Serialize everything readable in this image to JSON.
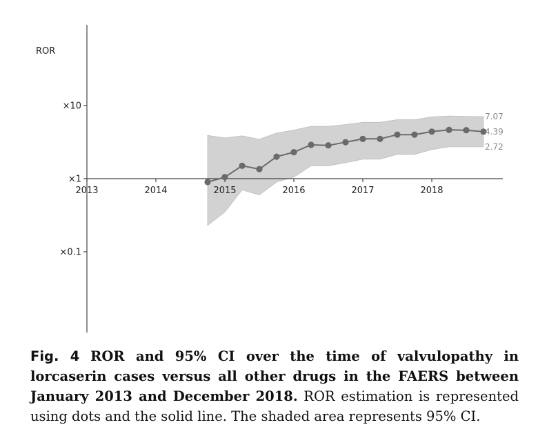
{
  "chart_data": {
    "type": "line",
    "title": "",
    "xlabel": "",
    "ylabel": "ROR",
    "yscale": "log",
    "ylim": [
      0.01,
      100
    ],
    "xlim": [
      2013,
      2019.05
    ],
    "x_ticks": [
      {
        "value": 2013,
        "label": "2013"
      },
      {
        "value": 2014,
        "label": "2014"
      },
      {
        "value": 2015,
        "label": "2015"
      },
      {
        "value": 2016,
        "label": "2016"
      },
      {
        "value": 2017,
        "label": "2017"
      },
      {
        "value": 2018,
        "label": "2018"
      }
    ],
    "y_ticks": [
      {
        "value": 10,
        "label": "×10"
      },
      {
        "value": 1,
        "label": "×1"
      },
      {
        "value": 0.1,
        "label": "×0.1"
      }
    ],
    "grid": false,
    "series": [
      {
        "x": [
          2014.75,
          2015.0,
          2015.25,
          2015.5,
          2015.75,
          2016.0,
          2016.25,
          2016.5,
          2016.75,
          2017.0,
          2017.25,
          2017.5,
          2017.75,
          2018.0,
          2018.25,
          2018.5,
          2018.75
        ],
        "y": [
          0.9,
          1.05,
          1.5,
          1.35,
          2.0,
          2.3,
          2.9,
          2.85,
          3.15,
          3.5,
          3.5,
          4.0,
          4.0,
          4.4,
          4.65,
          4.6,
          4.39
        ],
        "lower": [
          0.23,
          0.35,
          0.7,
          0.6,
          0.9,
          1.05,
          1.5,
          1.5,
          1.65,
          1.85,
          1.85,
          2.15,
          2.15,
          2.5,
          2.72,
          2.72,
          2.72
        ],
        "upper": [
          3.9,
          3.6,
          3.85,
          3.45,
          4.2,
          4.6,
          5.2,
          5.2,
          5.5,
          5.9,
          5.9,
          6.4,
          6.4,
          7.0,
          7.2,
          7.1,
          7.07
        ]
      }
    ],
    "annotations": [
      {
        "text": "7.07",
        "value": 7.07
      },
      {
        "text": "4.39",
        "value": 4.39
      },
      {
        "text": "2.72",
        "value": 2.72
      }
    ]
  },
  "caption": {
    "label": "Fig. 4",
    "title": "ROR and 95% CI over the time of valvulopathy in lorcaserin cases versus all other drugs in the FAERS between January 2013 and December 2018.",
    "body": "ROR estimation is represented using dots and the solid line. The shaded area represents 95% CI."
  }
}
